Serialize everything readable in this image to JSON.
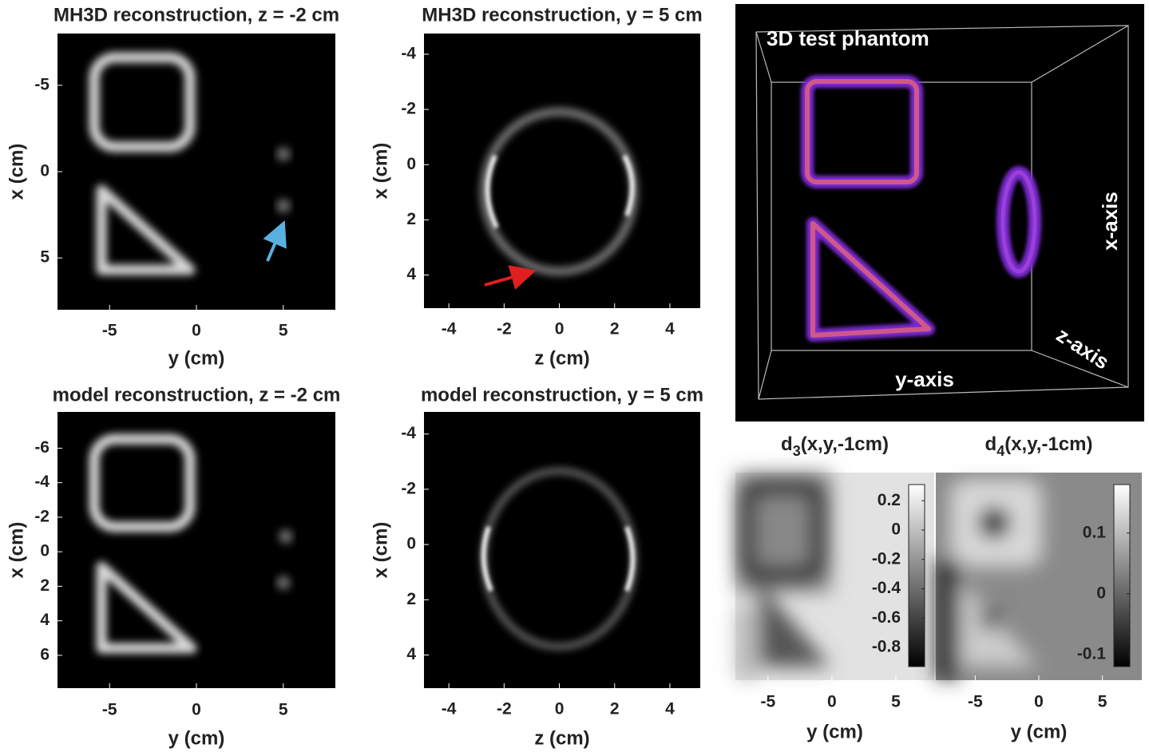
{
  "chart_data": [
    {
      "type": "image",
      "title": "MH3D reconstruction, z = -2 cm",
      "xlabel": "y (cm)",
      "ylabel": "x (cm)",
      "xlim": [
        -8,
        8
      ],
      "xticks": [
        -5,
        0,
        5
      ],
      "ylim": [
        -8,
        8
      ],
      "yticks": [
        -5,
        0,
        5
      ],
      "y_reversed": true
    },
    {
      "type": "image",
      "title": "MH3D reconstruction, y = 5 cm",
      "xlabel": "z (cm)",
      "ylabel": "x (cm)",
      "xlim": [
        -4.9,
        5.1
      ],
      "xticks": [
        -4,
        -2,
        0,
        2,
        4
      ],
      "ylim": [
        -4.75,
        5.2
      ],
      "yticks": [
        -4,
        -2,
        0,
        2,
        4
      ],
      "y_reversed": true
    },
    {
      "type": "image",
      "title": "model reconstruction, z = -2 cm",
      "xlabel": "y (cm)",
      "ylabel": "x (cm)",
      "xlim": [
        -8,
        8
      ],
      "xticks": [
        -5,
        0,
        5
      ],
      "ylim": [
        -8.1,
        7.9
      ],
      "yticks": [
        -6,
        -4,
        -2,
        0,
        2,
        4,
        6
      ],
      "y_reversed": true
    },
    {
      "type": "image",
      "title": "model reconstruction, y = 5 cm",
      "xlabel": "z (cm)",
      "ylabel": "x (cm)",
      "xlim": [
        -4.9,
        5.1
      ],
      "xticks": [
        -4,
        -2,
        0,
        2,
        4
      ],
      "ylim": [
        -4.8,
        5.2
      ],
      "yticks": [
        -4,
        -2,
        0,
        2,
        4
      ],
      "y_reversed": true
    },
    {
      "type": "volume",
      "title": "3D test phantom",
      "axis_labels": [
        "x-axis",
        "y-axis",
        "z-axis"
      ]
    },
    {
      "type": "heatmap",
      "title": {
        "base": "d",
        "subscript": "3",
        "rest": "(x,y,-1cm)"
      },
      "xlabel": "y (cm)",
      "xlim": [
        -7.55,
        8
      ],
      "xticks": [
        -5,
        0,
        5
      ],
      "clim": [
        -0.93,
        0.31
      ],
      "cticks": [
        0.2,
        0,
        -0.2,
        -0.4,
        -0.6,
        -0.8
      ]
    },
    {
      "type": "heatmap",
      "title": {
        "base": "d",
        "subscript": "4",
        "rest": "(x,y,-1cm)"
      },
      "xlabel": "y (cm)",
      "xlim": [
        -8.1,
        8.1
      ],
      "xticks": [
        -5,
        0,
        5
      ],
      "clim": [
        -0.12,
        0.18
      ],
      "cticks": [
        0.1,
        0,
        -0.1
      ]
    }
  ]
}
